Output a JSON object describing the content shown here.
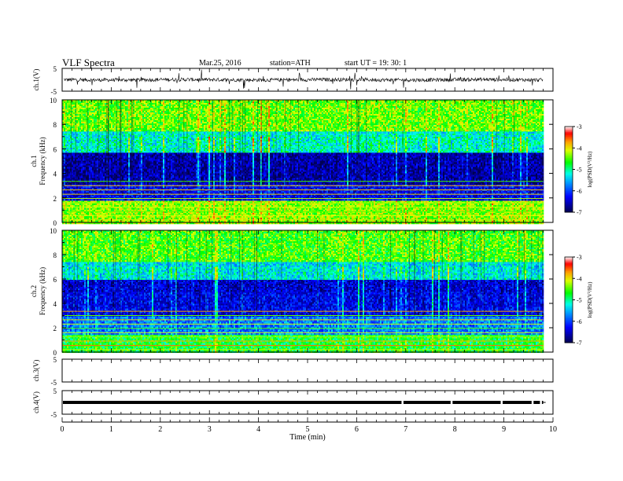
{
  "header": {
    "title": "VLF  Spectra",
    "date": "Mar.25, 2016",
    "station": "station=ATH",
    "start": "start  UT  =    19: 30: 1"
  },
  "chart_data": [
    {
      "type": "line",
      "panel": "ch1-waveform",
      "ylabel": "ch.1(V)",
      "ylim": [
        -5,
        5
      ],
      "yticks": [
        "5",
        "-5"
      ],
      "baseline": 0,
      "amplitude_description": "noisy waveform with spikes around 0 V"
    },
    {
      "type": "heatmap",
      "panel": "ch1-spectrogram",
      "ylabel": "ch.1\nFrequency  (kHz)",
      "ylabel_line1": "ch.1",
      "ylabel_line2": "Frequency  (kHz)",
      "ylim": [
        0,
        10
      ],
      "yticks": [
        "0",
        "2",
        "4",
        "6",
        "8",
        "10"
      ],
      "xlim": [
        0,
        10
      ],
      "data_end_min": 9.8,
      "colorbar": {
        "label": "log(PSD(V²/Hz)",
        "range": [
          -7,
          -3
        ],
        "ticks": [
          "-3",
          "-4",
          "-5",
          "-6",
          "-7"
        ]
      },
      "bands_khz": [
        {
          "from": 0,
          "to": 1.8,
          "level": -4.4
        },
        {
          "from": 1.8,
          "to": 3.2,
          "level": -6.4
        },
        {
          "from": 3.2,
          "to": 5.8,
          "level": -6.8
        },
        {
          "from": 5.8,
          "to": 7.5,
          "level": -5.3
        },
        {
          "from": 7.5,
          "to": 10,
          "level": -4.5
        }
      ]
    },
    {
      "type": "heatmap",
      "panel": "ch2-spectrogram",
      "ylabel_line1": "ch.2",
      "ylabel_line2": "Frequency  (kHz)",
      "ylim": [
        0,
        10
      ],
      "yticks": [
        "0",
        "2",
        "4",
        "6",
        "8",
        "10"
      ],
      "xlim": [
        0,
        10
      ],
      "data_end_min": 9.8,
      "colorbar": {
        "label": "log(PSD(V²/Hz)",
        "range": [
          -7,
          -3
        ],
        "ticks": [
          "-3",
          "-4",
          "-5",
          "-6",
          "-7"
        ]
      },
      "bands_khz": [
        {
          "from": 0,
          "to": 1.5,
          "level": -4.8
        },
        {
          "from": 1.5,
          "to": 3.0,
          "level": -5.8
        },
        {
          "from": 3.0,
          "to": 5.0,
          "level": -6.5
        },
        {
          "from": 5.0,
          "to": 6.0,
          "level": -6.6
        },
        {
          "from": 6.0,
          "to": 7.5,
          "level": -5.4
        },
        {
          "from": 7.5,
          "to": 10,
          "level": -4.6
        }
      ]
    },
    {
      "type": "line",
      "panel": "ch3-waveform",
      "ylabel": "ch.3(V)",
      "ylim": [
        -5,
        5
      ],
      "yticks": [
        "5",
        "-5"
      ],
      "values_description": "empty"
    },
    {
      "type": "line",
      "panel": "ch4-waveform",
      "ylabel": "ch.4(V)",
      "ylim": [
        -5,
        5
      ],
      "yticks": [
        "5",
        "-5"
      ],
      "baseline": 0,
      "gaps_min": [
        6.93,
        7.93,
        8.95,
        9.58,
        9.75
      ]
    }
  ],
  "xaxis": {
    "label": "Time  (min)",
    "range": [
      0,
      10
    ],
    "ticks": [
      "0",
      "1",
      "2",
      "3",
      "4",
      "5",
      "6",
      "7",
      "8",
      "9",
      "10"
    ]
  },
  "colors": {
    "axis": "#000000",
    "background": "#ffffff",
    "colormap": [
      "#000044",
      "#0000ff",
      "#00ffff",
      "#00ff00",
      "#ffff00",
      "#ff0000",
      "#ffffff"
    ]
  }
}
